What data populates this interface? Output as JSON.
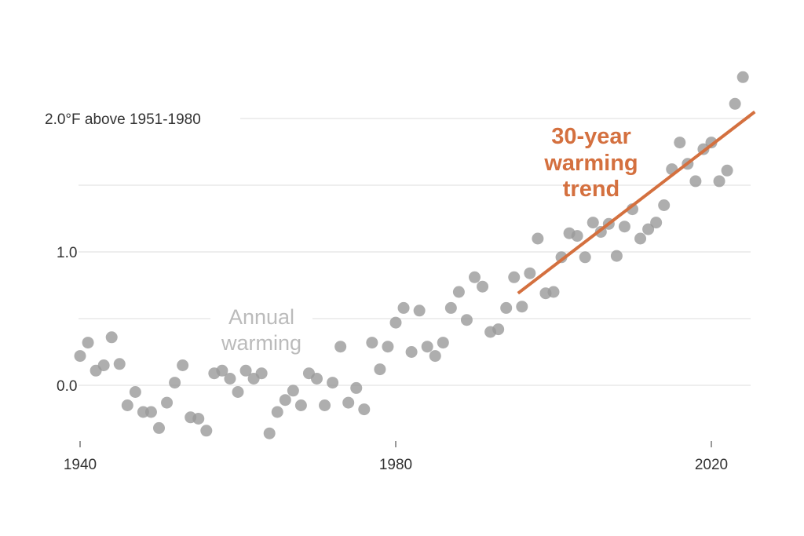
{
  "chart_data": {
    "type": "scatter",
    "title": "",
    "xlabel": "",
    "ylabel": "",
    "xlim": [
      1940,
      2024
    ],
    "ylim": [
      -0.45,
      2.4
    ],
    "grid": true,
    "x_ticks": [
      {
        "value": 1940,
        "label": "1940"
      },
      {
        "value": 1980,
        "label": "1980"
      },
      {
        "value": 2020,
        "label": "2020"
      }
    ],
    "y_ticks": [
      {
        "value": 0.0,
        "label": "0.0"
      },
      {
        "value": 1.0,
        "label": "1.0"
      },
      {
        "value": 2.0,
        "label": "2.0°F above 1951-1980"
      }
    ],
    "y_gridlines": [
      0,
      0.5,
      1.0,
      1.5,
      2.0
    ],
    "annotations": {
      "annual": [
        "Annual",
        "warming"
      ],
      "trend": [
        "30-year",
        "warming",
        "trend"
      ]
    },
    "colors": {
      "points": "#9a9a9a",
      "trend": "#d4703f",
      "grid": "#dddddd"
    },
    "series": [
      {
        "x": [
          1940,
          1941,
          1942,
          1943,
          1944,
          1945,
          1946,
          1947,
          1948,
          1949,
          1950,
          1951,
          1952,
          1953,
          1954,
          1955,
          1956,
          1957,
          1958,
          1959,
          1960,
          1961,
          1962,
          1963,
          1964,
          1965,
          1966,
          1967,
          1968,
          1969,
          1970,
          1971,
          1972,
          1973,
          1974,
          1975,
          1976,
          1977,
          1978,
          1979,
          1980,
          1981,
          1982,
          1983,
          1984,
          1985,
          1986,
          1987,
          1988,
          1989,
          1990,
          1991,
          1992,
          1993,
          1994,
          1995,
          1996,
          1997,
          1998,
          1999,
          2000,
          2001,
          2002,
          2003,
          2004,
          2005,
          2006,
          2007,
          2008,
          2009,
          2010,
          2011,
          2012,
          2013,
          2014,
          2015,
          2016,
          2017,
          2018,
          2019,
          2020,
          2021,
          2022,
          2023,
          2024
        ],
        "y": [
          0.22,
          0.32,
          0.11,
          0.15,
          0.36,
          0.16,
          -0.15,
          -0.05,
          -0.2,
          -0.2,
          -0.32,
          -0.13,
          0.02,
          0.15,
          -0.24,
          -0.25,
          -0.34,
          0.09,
          0.11,
          0.05,
          -0.05,
          0.11,
          0.05,
          0.09,
          -0.36,
          -0.2,
          -0.11,
          -0.04,
          -0.15,
          0.09,
          0.05,
          -0.15,
          0.02,
          0.29,
          -0.13,
          -0.02,
          -0.18,
          0.32,
          0.12,
          0.29,
          0.47,
          0.58,
          0.25,
          0.56,
          0.29,
          0.22,
          0.32,
          0.58,
          0.7,
          0.49,
          0.81,
          0.74,
          0.4,
          0.42,
          0.58,
          0.81,
          0.59,
          0.84,
          1.1,
          0.69,
          0.7,
          0.96,
          1.14,
          1.12,
          0.96,
          1.22,
          1.15,
          1.21,
          0.97,
          1.19,
          1.32,
          1.1,
          1.17,
          1.22,
          1.35,
          1.62,
          1.82,
          1.66,
          1.53,
          1.77,
          1.82,
          1.53,
          1.61,
          2.11,
          2.31
        ]
      }
    ],
    "trend_line": {
      "x": [
        1995.5,
        2025.5
      ],
      "y": [
        0.69,
        2.05
      ]
    }
  }
}
